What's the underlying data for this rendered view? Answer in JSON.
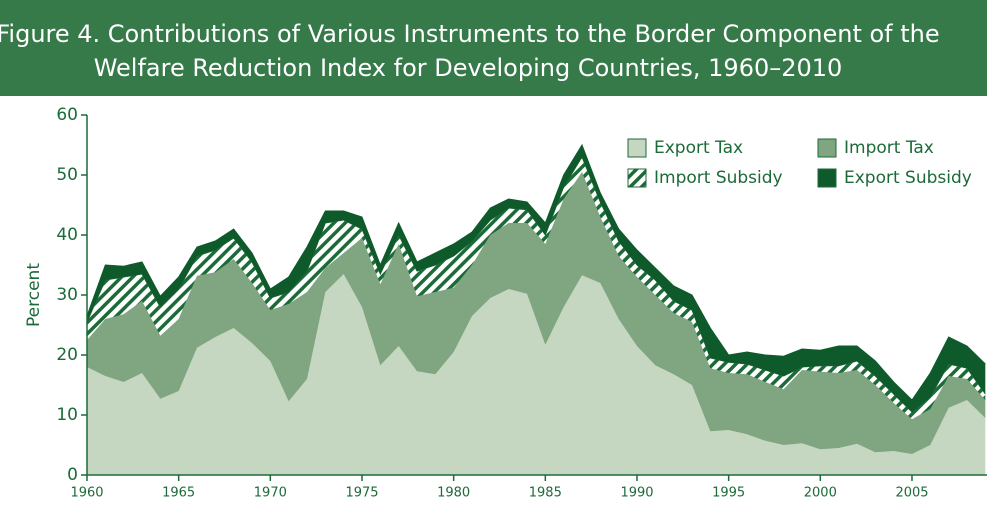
{
  "chart_data": {
    "type": "stacked_area",
    "title": [
      "Figure 4. Contributions of Various Instruments to the Border Component of the",
      "Welfare Reduction Index for Developing Countries, 1960–2010"
    ],
    "y_label": "Percent",
    "x": [
      1960,
      1961,
      1962,
      1963,
      1964,
      1965,
      1966,
      1967,
      1968,
      1969,
      1970,
      1971,
      1972,
      1973,
      1974,
      1975,
      1976,
      1977,
      1978,
      1979,
      1980,
      1981,
      1982,
      1983,
      1984,
      1985,
      1986,
      1987,
      1988,
      1989,
      1990,
      1991,
      1992,
      1993,
      1994,
      1995,
      1996,
      1997,
      1998,
      1999,
      2000,
      2001,
      2002,
      2003,
      2004,
      2005,
      2006,
      2007,
      2008,
      2009
    ],
    "series": [
      {
        "name": "Export Tax",
        "color": "#c6d7c1",
        "values": [
          18,
          16.5,
          15.5,
          17,
          12.7,
          14,
          21.2,
          23,
          24.5,
          22,
          19,
          12.3,
          16,
          30.5,
          33.5,
          28,
          18.3,
          21.5,
          17.3,
          16.8,
          20.5,
          26.5,
          29.5,
          31,
          30.2,
          21.7,
          28,
          33.3,
          32,
          26,
          21.5,
          18.3,
          16.8,
          15,
          7.3,
          7.5,
          6.8,
          5.7,
          5,
          5.3,
          4.3,
          4.5,
          5.2,
          3.8,
          4,
          3.5,
          5,
          11.2,
          12.5,
          9.5
        ]
      },
      {
        "name": "Import Tax",
        "color": "#80a581",
        "values": [
          4.5,
          9.5,
          11.3,
          12,
          10.5,
          12,
          12,
          10.8,
          11.5,
          10,
          8.5,
          16.2,
          14.5,
          4,
          3.5,
          11.5,
          13.5,
          17,
          12.5,
          13.7,
          10.7,
          8.5,
          10.5,
          11,
          11.8,
          16.8,
          18,
          17.2,
          11,
          10.5,
          11.5,
          11.7,
          10.2,
          10.5,
          10.5,
          9.5,
          10,
          9.8,
          9.3,
          12.2,
          12.9,
          12.5,
          12.3,
          11.2,
          8,
          5.8,
          6,
          5.3,
          3.5,
          3
        ]
      },
      {
        "name": "Import Subsidy",
        "color": "#1d6a39",
        "hatch": true,
        "values": [
          3,
          6.5,
          6.2,
          4.5,
          4.8,
          5,
          3.3,
          3.7,
          3.5,
          3.5,
          2,
          2,
          3.5,
          7.5,
          5.5,
          1.5,
          1.7,
          1.5,
          4.2,
          4.5,
          5.3,
          4,
          2.5,
          2.5,
          2.2,
          1.5,
          2,
          2.5,
          2.5,
          2.5,
          2,
          2.5,
          2,
          2,
          1.7,
          1.8,
          1.7,
          2,
          2.2,
          0.5,
          1,
          1.2,
          1.5,
          1.5,
          1.5,
          1.2,
          2,
          2,
          1.8,
          1
        ]
      },
      {
        "name": "Export Subsidy",
        "color": "#0e5a2b",
        "values": [
          1,
          2.5,
          1.8,
          2,
          1.8,
          2,
          1.5,
          1.5,
          1.5,
          1.5,
          1.5,
          2.5,
          4,
          2,
          1.5,
          2,
          1.5,
          2,
          1.5,
          2,
          2,
          1.5,
          2,
          1.5,
          1.3,
          2,
          2,
          2,
          1.5,
          2,
          2.5,
          2,
          2.5,
          2.5,
          5,
          1.2,
          2,
          2.5,
          3.3,
          3,
          2.6,
          3.3,
          2.5,
          2.5,
          2,
          2,
          4,
          4.5,
          3.7,
          5
        ]
      }
    ],
    "xlim": [
      1960,
      2009
    ],
    "xticks": [
      1960,
      1965,
      1970,
      1975,
      1980,
      1985,
      1990,
      1995,
      2000,
      2005
    ],
    "ylim": [
      0,
      60
    ],
    "yticks": [
      0,
      10,
      20,
      30,
      40,
      50,
      60
    ]
  }
}
